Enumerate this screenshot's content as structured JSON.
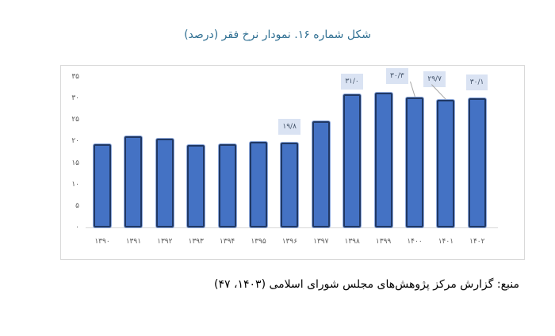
{
  "title": "شکل شماره ۱۶. نمودار نرخ فقر (درصد)",
  "source": "منبع: گزارش مرکز پژوهش‌های مجلس شورای اسلامی (۱۴۰۳، ۴۷)",
  "colors": {
    "bar_fill": "#4472c4",
    "bar_border": "#203864",
    "title": "#2f6f92",
    "label_bg": "#dae3f3"
  },
  "y_ticks": [
    "۰",
    "۵",
    "۱۰",
    "۱۵",
    "۲۰",
    "۲۵",
    "۳۰",
    "۳۵"
  ],
  "x_labels": [
    "۱۳۹۰",
    "۱۳۹۱",
    "۱۳۹۲",
    "۱۳۹۳",
    "۱۳۹۴",
    "۱۳۹۵",
    "۱۳۹۶",
    "۱۳۹۷",
    "۱۳۹۸",
    "۱۳۹۹",
    "۱۴۰۰",
    "۱۴۰۱",
    "۱۴۰۲"
  ],
  "data_labels": {
    "1396": "۱۹/۸",
    "1398": "۳۱/۰",
    "1400": "۳۰/۳",
    "1401": "۲۹/۷",
    "1402": "۳۰/۱"
  },
  "chart_data": {
    "type": "bar",
    "title": "شکل شماره ۱۶. نمودار نرخ فقر (درصد)",
    "xlabel": "",
    "ylabel": "",
    "categories": [
      "1390",
      "1391",
      "1392",
      "1393",
      "1394",
      "1395",
      "1396",
      "1397",
      "1398",
      "1399",
      "1400",
      "1401",
      "1402"
    ],
    "values": [
      19.3,
      21.2,
      20.6,
      19.1,
      19.3,
      19.9,
      19.8,
      24.7,
      31.0,
      31.3,
      30.3,
      29.7,
      30.1
    ],
    "labeled_values": {
      "1396": 19.8,
      "1398": 31.0,
      "1400": 30.3,
      "1401": 29.7,
      "1402": 30.1
    },
    "ylim": [
      0,
      35
    ],
    "yticks": [
      0,
      5,
      10,
      15,
      20,
      25,
      30,
      35
    ],
    "grid": false,
    "legend": "none",
    "source": "گزارش مرکز پژوهش‌های مجلس شورای اسلامی (۱۴۰۳، ۴۷)"
  }
}
